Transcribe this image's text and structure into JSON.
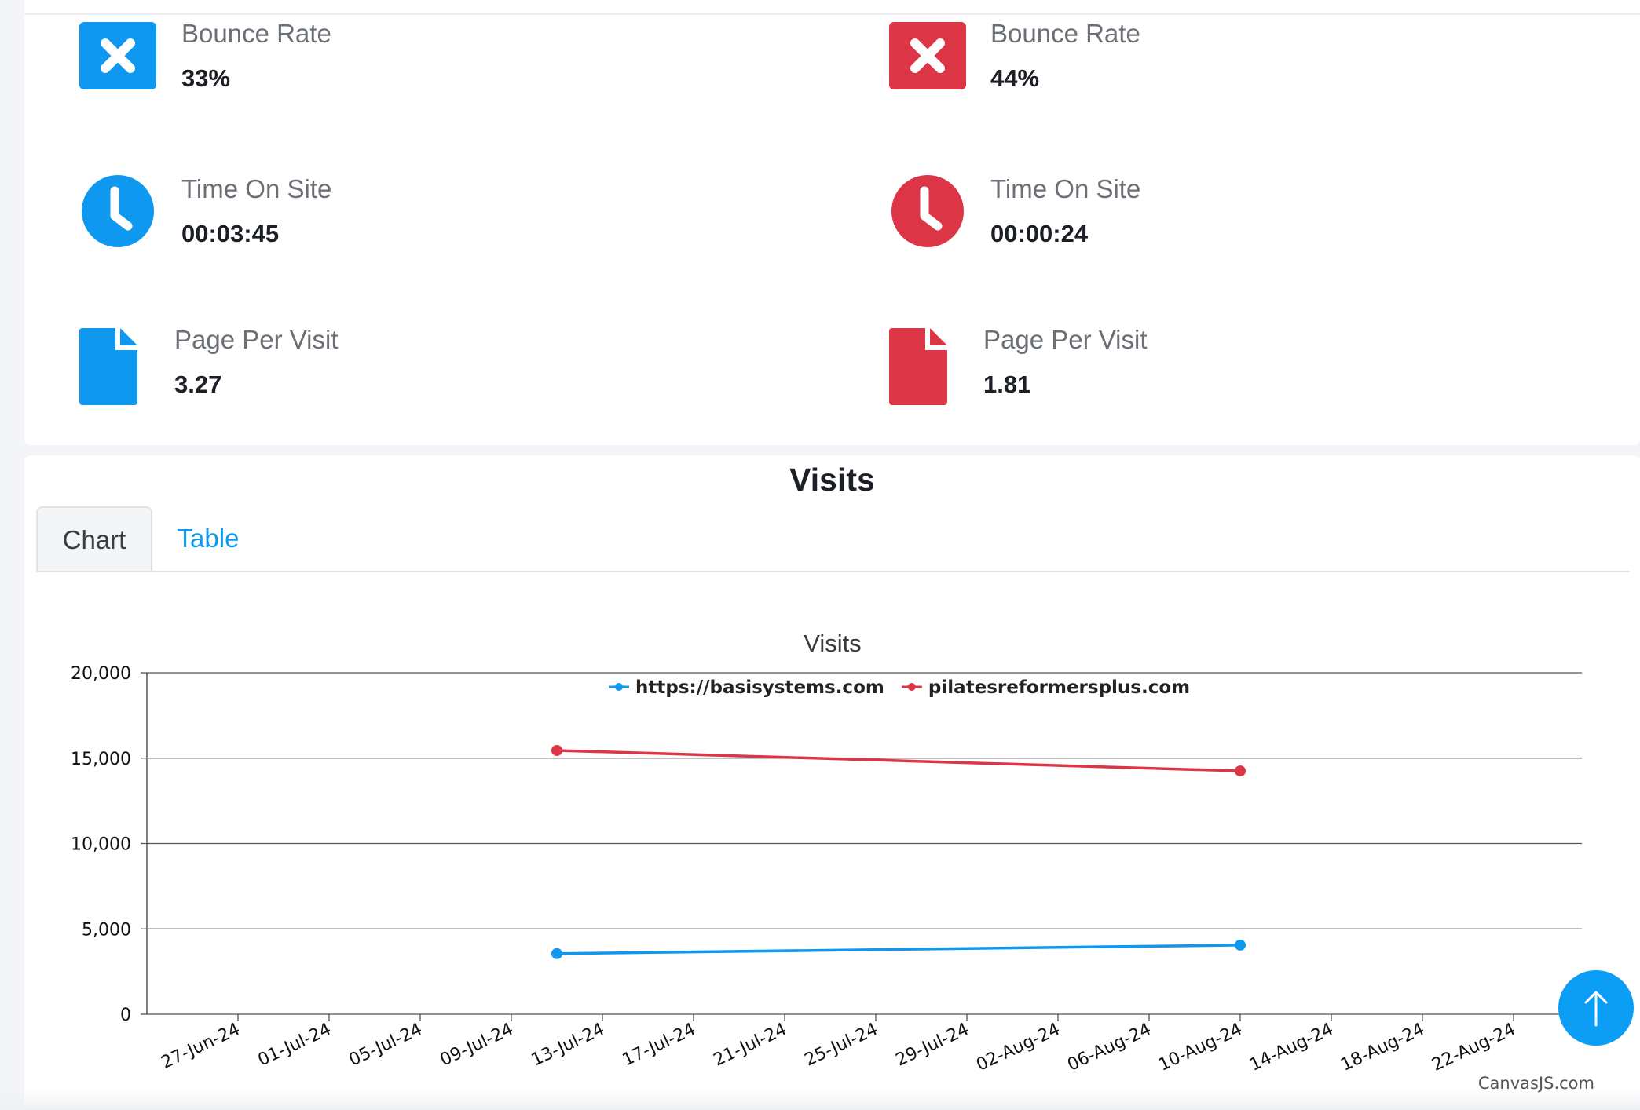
{
  "colors": {
    "blue": "#0e98f0",
    "red": "#dc3545"
  },
  "stats": {
    "site1": {
      "bounce_rate": {
        "label": "Bounce Rate",
        "value": "33%",
        "icon": "times-icon"
      },
      "time_on_site": {
        "label": "Time On Site",
        "value": "00:03:45",
        "icon": "clock-icon"
      },
      "page_per_visit": {
        "label": "Page Per Visit",
        "value": "3.27",
        "icon": "file-icon"
      }
    },
    "site2": {
      "bounce_rate": {
        "label": "Bounce Rate",
        "value": "44%",
        "icon": "times-icon"
      },
      "time_on_site": {
        "label": "Time On Site",
        "value": "00:00:24",
        "icon": "clock-icon"
      },
      "page_per_visit": {
        "label": "Page Per Visit",
        "value": "1.81",
        "icon": "file-icon"
      }
    }
  },
  "visits": {
    "title": "Visits",
    "tabs": [
      {
        "label": "Chart",
        "active": true
      },
      {
        "label": "Table",
        "active": false
      }
    ],
    "credit": "CanvasJS.com"
  },
  "chart_data": {
    "type": "line",
    "title": "Visits",
    "legend_position": "top-center",
    "grid": true,
    "ylim": [
      0,
      20000
    ],
    "y_ticks": [
      0,
      5000,
      10000,
      15000,
      20000
    ],
    "y_tick_labels": [
      "0",
      "5,000",
      "10,000",
      "15,000",
      "20,000"
    ],
    "x_tick_labels": [
      "27-Jun-24",
      "01-Jul-24",
      "05-Jul-24",
      "09-Jul-24",
      "13-Jul-24",
      "17-Jul-24",
      "21-Jul-24",
      "25-Jul-24",
      "29-Jul-24",
      "02-Aug-24",
      "06-Aug-24",
      "10-Aug-24",
      "14-Aug-24",
      "18-Aug-24",
      "22-Aug-24"
    ],
    "xlim": [
      "2024-06-23",
      "2024-08-25"
    ],
    "series": [
      {
        "name": "https://basisystems.com",
        "color": "#0e98f0",
        "x": [
          "2024-07-11",
          "2024-08-10"
        ],
        "values": [
          3550,
          4050
        ]
      },
      {
        "name": "pilatesreformersplus.com",
        "color": "#dc3545",
        "x": [
          "2024-07-11",
          "2024-08-10"
        ],
        "values": [
          15450,
          14250
        ]
      }
    ]
  }
}
